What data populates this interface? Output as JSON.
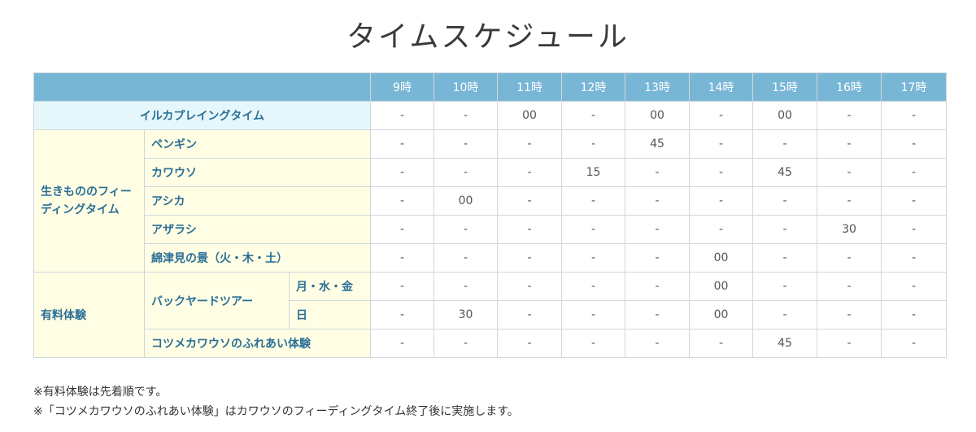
{
  "title": "タイムスケジュール",
  "hours": [
    "9時",
    "10時",
    "11時",
    "12時",
    "13時",
    "14時",
    "15時",
    "16時",
    "17時"
  ],
  "rows": {
    "dolphin": {
      "label": "イルカプレイングタイム",
      "values": [
        "-",
        "-",
        "00",
        "-",
        "00",
        "-",
        "00",
        "-",
        "-"
      ]
    },
    "feeding_group": "生きもののフィーディングタイム",
    "penguin": {
      "label": "ペンギン",
      "values": [
        "-",
        "-",
        "-",
        "-",
        "45",
        "-",
        "-",
        "-",
        "-"
      ]
    },
    "otter": {
      "label": "カワウソ",
      "values": [
        "-",
        "-",
        "-",
        "15",
        "-",
        "-",
        "45",
        "-",
        "-"
      ]
    },
    "sealion": {
      "label": "アシカ",
      "values": [
        "-",
        "00",
        "-",
        "-",
        "-",
        "-",
        "-",
        "-",
        "-"
      ]
    },
    "seal": {
      "label": "アザラシ",
      "values": [
        "-",
        "-",
        "-",
        "-",
        "-",
        "-",
        "-",
        "30",
        "-"
      ]
    },
    "watami": {
      "label": "綿津見の景（火・木・土）",
      "values": [
        "-",
        "-",
        "-",
        "-",
        "-",
        "00",
        "-",
        "-",
        "-"
      ]
    },
    "paid_group": "有料体験",
    "backyard": {
      "label": "バックヤードツアー",
      "weekday": {
        "label": "月・水・金",
        "values": [
          "-",
          "-",
          "-",
          "-",
          "-",
          "00",
          "-",
          "-",
          "-"
        ]
      },
      "sunday": {
        "label": "日",
        "values": [
          "-",
          "30",
          "-",
          "-",
          "-",
          "00",
          "-",
          "-",
          "-"
        ]
      }
    },
    "clawless": {
      "label": "コツメカワウソのふれあい体験",
      "values": [
        "-",
        "-",
        "-",
        "-",
        "-",
        "-",
        "45",
        "-",
        "-"
      ]
    }
  },
  "notes": [
    "※有料体験は先着順です。",
    "※「コツメカワウソのふれあい体験」はカワウソのフィーディングタイム終了後に実施します。"
  ]
}
